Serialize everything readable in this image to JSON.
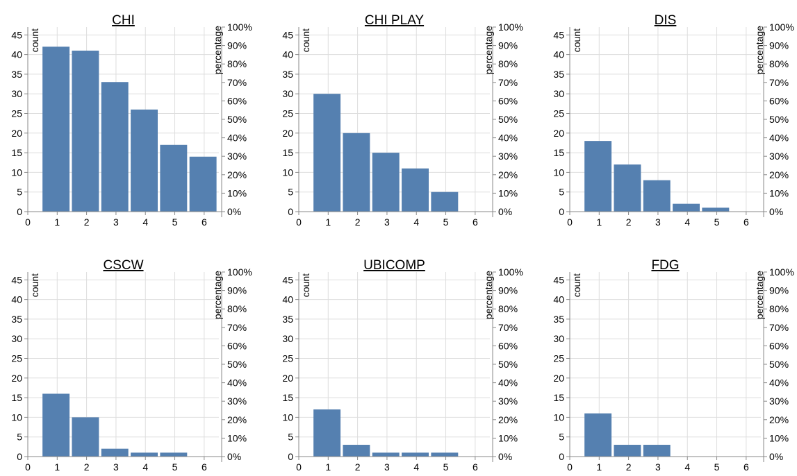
{
  "chart_data": [
    {
      "type": "bar",
      "title": "CHI",
      "xlabel": "",
      "ylabel": "count",
      "y2label": "percentage",
      "categories": [
        "1",
        "2",
        "3",
        "4",
        "5",
        "6"
      ],
      "values": [
        42,
        41,
        33,
        26,
        17,
        14
      ],
      "xlim": [
        0,
        6.5
      ],
      "xticks": [
        "0",
        "1",
        "2",
        "3",
        "4",
        "5",
        "6"
      ],
      "ylim": [
        0,
        47
      ],
      "yticks": [
        "0",
        "5",
        "10",
        "15",
        "20",
        "25",
        "30",
        "35",
        "40",
        "45"
      ],
      "y2ticks": [
        "0%",
        "10%",
        "20%",
        "30%",
        "40%",
        "50%",
        "60%",
        "70%",
        "80%",
        "90%",
        "100%"
      ],
      "grid": true,
      "color": "#5580b0"
    },
    {
      "type": "bar",
      "title": "CHI PLAY",
      "xlabel": "",
      "ylabel": "count",
      "y2label": "percentage",
      "categories": [
        "1",
        "2",
        "3",
        "4",
        "5",
        "6"
      ],
      "values": [
        30,
        20,
        15,
        11,
        5,
        0
      ],
      "xlim": [
        0,
        6.5
      ],
      "xticks": [
        "0",
        "1",
        "2",
        "3",
        "4",
        "5",
        "6"
      ],
      "ylim": [
        0,
        47
      ],
      "yticks": [
        "0",
        "5",
        "10",
        "15",
        "20",
        "25",
        "30",
        "35",
        "40",
        "45"
      ],
      "y2ticks": [
        "0%",
        "10%",
        "20%",
        "30%",
        "40%",
        "50%",
        "60%",
        "70%",
        "80%",
        "90%",
        "100%"
      ],
      "grid": true,
      "color": "#5580b0"
    },
    {
      "type": "bar",
      "title": "DIS",
      "xlabel": "",
      "ylabel": "count",
      "y2label": "percentage",
      "categories": [
        "1",
        "2",
        "3",
        "4",
        "5",
        "6"
      ],
      "values": [
        18,
        12,
        8,
        2,
        1,
        0
      ],
      "xlim": [
        0,
        6.5
      ],
      "xticks": [
        "0",
        "1",
        "2",
        "3",
        "4",
        "5",
        "6"
      ],
      "ylim": [
        0,
        47
      ],
      "yticks": [
        "0",
        "5",
        "10",
        "15",
        "20",
        "25",
        "30",
        "35",
        "40",
        "45"
      ],
      "y2ticks": [
        "0%",
        "10%",
        "20%",
        "30%",
        "40%",
        "50%",
        "60%",
        "70%",
        "80%",
        "90%",
        "100%"
      ],
      "grid": true,
      "color": "#5580b0"
    },
    {
      "type": "bar",
      "title": "CSCW",
      "xlabel": "",
      "ylabel": "count",
      "y2label": "percentage",
      "categories": [
        "1",
        "2",
        "3",
        "4",
        "5",
        "6"
      ],
      "values": [
        16,
        10,
        2,
        1,
        1,
        0
      ],
      "xlim": [
        0,
        6.5
      ],
      "xticks": [
        "0",
        "1",
        "2",
        "3",
        "4",
        "5",
        "6"
      ],
      "ylim": [
        0,
        47
      ],
      "yticks": [
        "0",
        "5",
        "10",
        "15",
        "20",
        "25",
        "30",
        "35",
        "40",
        "45"
      ],
      "y2ticks": [
        "0%",
        "10%",
        "20%",
        "30%",
        "40%",
        "50%",
        "60%",
        "70%",
        "80%",
        "90%",
        "100%"
      ],
      "grid": true,
      "color": "#5580b0"
    },
    {
      "type": "bar",
      "title": "UBICOMP",
      "xlabel": "",
      "ylabel": "count",
      "y2label": "percentage",
      "categories": [
        "1",
        "2",
        "3",
        "4",
        "5",
        "6"
      ],
      "values": [
        12,
        3,
        1,
        1,
        1,
        0
      ],
      "xlim": [
        0,
        6.5
      ],
      "xticks": [
        "0",
        "1",
        "2",
        "3",
        "4",
        "5",
        "6"
      ],
      "ylim": [
        0,
        47
      ],
      "yticks": [
        "0",
        "5",
        "10",
        "15",
        "20",
        "25",
        "30",
        "35",
        "40",
        "45"
      ],
      "y2ticks": [
        "0%",
        "10%",
        "20%",
        "30%",
        "40%",
        "50%",
        "60%",
        "70%",
        "80%",
        "90%",
        "100%"
      ],
      "grid": true,
      "color": "#5580b0"
    },
    {
      "type": "bar",
      "title": "FDG",
      "xlabel": "",
      "ylabel": "count",
      "y2label": "percentage",
      "categories": [
        "1",
        "2",
        "3",
        "4",
        "5",
        "6"
      ],
      "values": [
        11,
        3,
        3,
        0,
        0,
        0
      ],
      "xlim": [
        0,
        6.5
      ],
      "xticks": [
        "0",
        "1",
        "2",
        "3",
        "4",
        "5",
        "6"
      ],
      "ylim": [
        0,
        47
      ],
      "yticks": [
        "0",
        "5",
        "10",
        "15",
        "20",
        "25",
        "30",
        "35",
        "40",
        "45"
      ],
      "y2ticks": [
        "0%",
        "10%",
        "20%",
        "30%",
        "40%",
        "50%",
        "60%",
        "70%",
        "80%",
        "90%",
        "100%"
      ],
      "grid": true,
      "color": "#5580b0"
    }
  ]
}
